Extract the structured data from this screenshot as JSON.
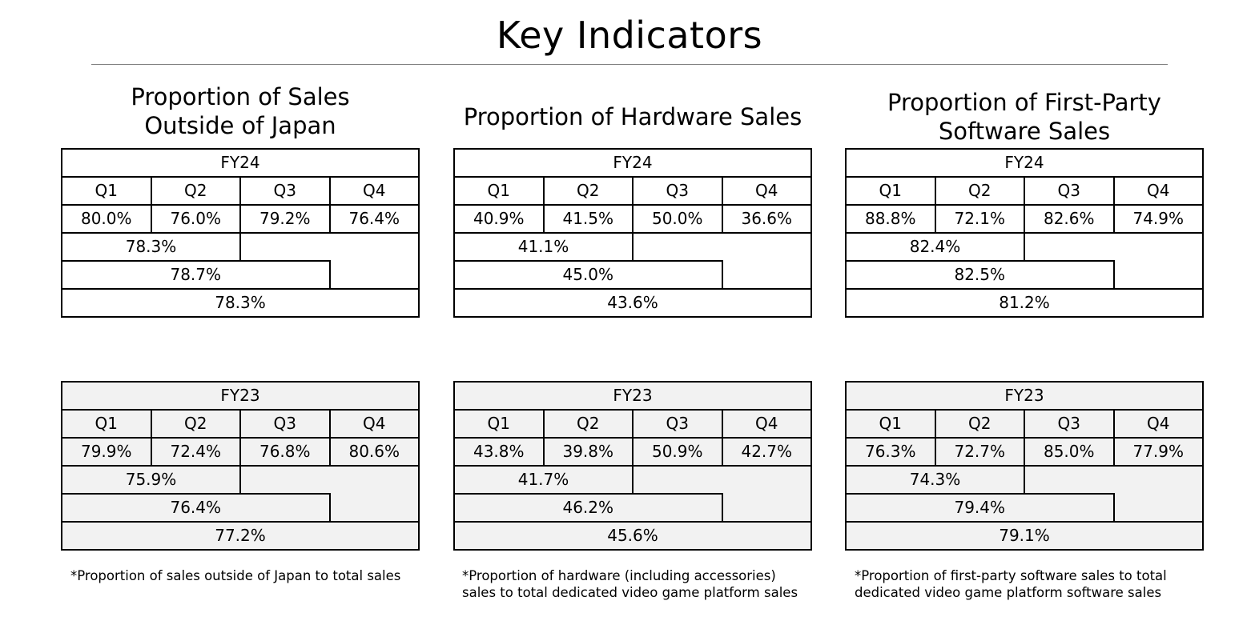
{
  "page": {
    "title": "Key Indicators"
  },
  "sections": [
    {
      "heading": "Proportion of Sales\nOutside of Japan",
      "fy24": {
        "label": "FY24",
        "quarters": [
          "Q1",
          "Q2",
          "Q3",
          "Q4"
        ],
        "values": [
          "80.0%",
          "76.0%",
          "79.2%",
          "76.4%"
        ],
        "cum_h1": "78.3%",
        "cum_q3": "78.7%",
        "full_year": "78.3%"
      },
      "fy23": {
        "label": "FY23",
        "quarters": [
          "Q1",
          "Q2",
          "Q3",
          "Q4"
        ],
        "values": [
          "79.9%",
          "72.4%",
          "76.8%",
          "80.6%"
        ],
        "cum_h1": "75.9%",
        "cum_q3": "76.4%",
        "full_year": "77.2%"
      },
      "note": "*Proportion of sales outside of Japan to total sales"
    },
    {
      "heading": "Proportion of Hardware Sales",
      "fy24": {
        "label": "FY24",
        "quarters": [
          "Q1",
          "Q2",
          "Q3",
          "Q4"
        ],
        "values": [
          "40.9%",
          "41.5%",
          "50.0%",
          "36.6%"
        ],
        "cum_h1": "41.1%",
        "cum_q3": "45.0%",
        "full_year": "43.6%"
      },
      "fy23": {
        "label": "FY23",
        "quarters": [
          "Q1",
          "Q2",
          "Q3",
          "Q4"
        ],
        "values": [
          "43.8%",
          "39.8%",
          "50.9%",
          "42.7%"
        ],
        "cum_h1": "41.7%",
        "cum_q3": "46.2%",
        "full_year": "45.6%"
      },
      "note": "*Proportion of hardware (including accessories) sales to total dedicated video game platform sales"
    },
    {
      "heading": "Proportion of First-Party\nSoftware Sales",
      "fy24": {
        "label": "FY24",
        "quarters": [
          "Q1",
          "Q2",
          "Q3",
          "Q4"
        ],
        "values": [
          "88.8%",
          "72.1%",
          "82.6%",
          "74.9%"
        ],
        "cum_h1": "82.4%",
        "cum_q3": "82.5%",
        "full_year": "81.2%"
      },
      "fy23": {
        "label": "FY23",
        "quarters": [
          "Q1",
          "Q2",
          "Q3",
          "Q4"
        ],
        "values": [
          "76.3%",
          "72.7%",
          "85.0%",
          "77.9%"
        ],
        "cum_h1": "74.3%",
        "cum_q3": "79.4%",
        "full_year": "79.1%"
      },
      "note": "*Proportion of first-party software sales to total dedicated video game platform software sales"
    }
  ]
}
